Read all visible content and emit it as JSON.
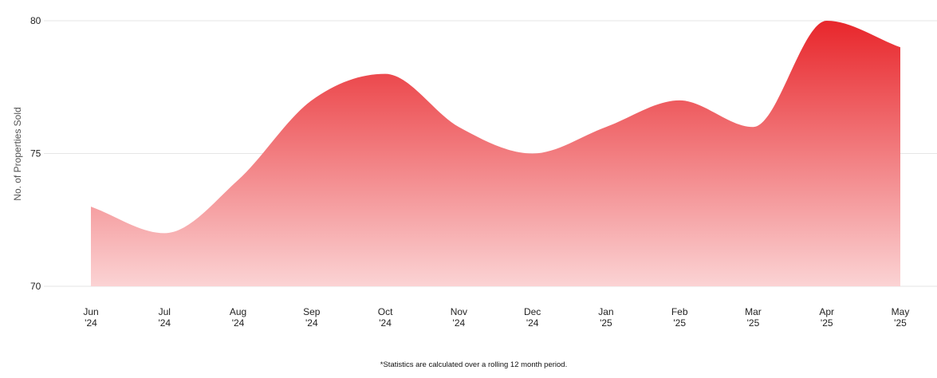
{
  "chart_data": {
    "type": "area",
    "categories": [
      [
        "Jun",
        "'24"
      ],
      [
        "Jul",
        "'24"
      ],
      [
        "Aug",
        "'24"
      ],
      [
        "Sep",
        "'24"
      ],
      [
        "Oct",
        "'24"
      ],
      [
        "Nov",
        "'24"
      ],
      [
        "Dec",
        "'24"
      ],
      [
        "Jan",
        "'25"
      ],
      [
        "Feb",
        "'25"
      ],
      [
        "Mar",
        "'25"
      ],
      [
        "Apr",
        "'25"
      ],
      [
        "May",
        "'25"
      ]
    ],
    "values": [
      73,
      72,
      74,
      77,
      78,
      76,
      75,
      76,
      77,
      76,
      80,
      79
    ],
    "ylabel": "No. of Properties Sold",
    "ylim": [
      70,
      80
    ],
    "yticks": [
      70,
      75,
      80
    ],
    "grid": true,
    "colors": {
      "top": "#e8262b",
      "bottom": "#fbd3d4",
      "grid": "#e6e6e6"
    }
  },
  "footnote": "*Statistics are calculated over a rolling 12 month period."
}
